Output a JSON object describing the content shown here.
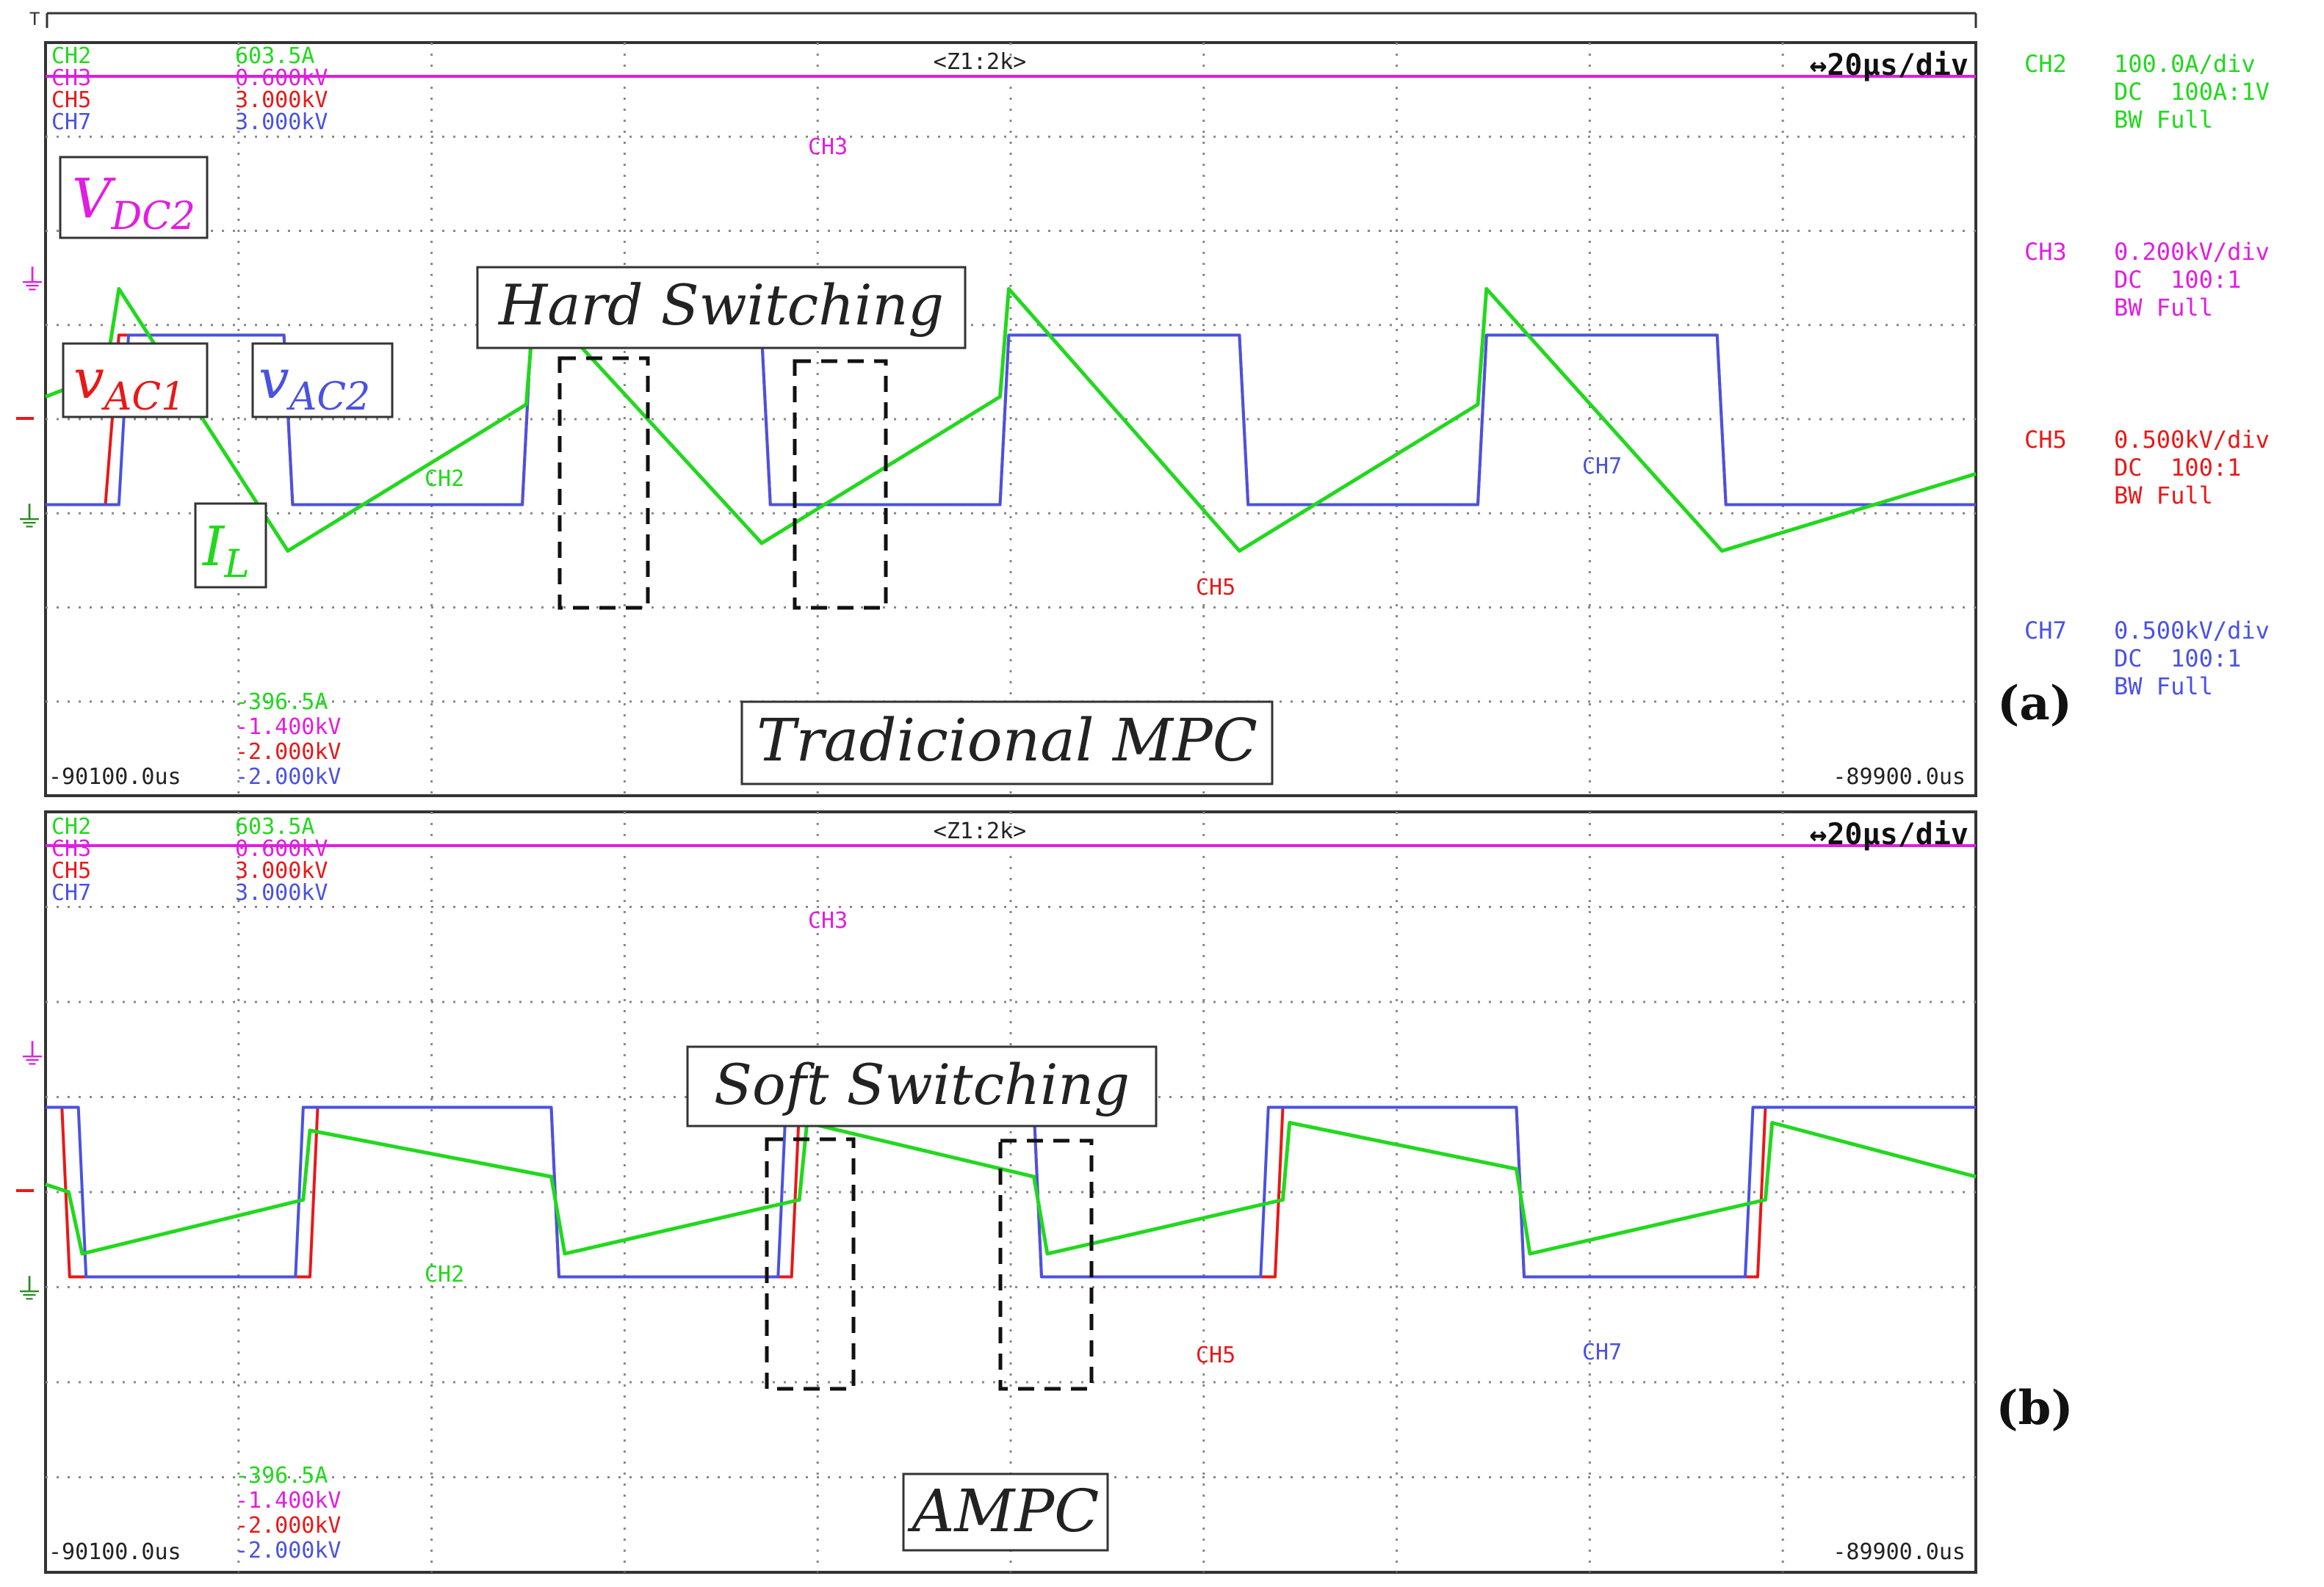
{
  "colors": {
    "ch2": "#22d81e",
    "ch3": "#e01ee0",
    "ch5": "#e81818",
    "ch7": "#4a52e0",
    "grid": "#888888",
    "frame": "#333333"
  },
  "header": {
    "zoom": "<Z1:2k>",
    "timebase": "↔20μs/div"
  },
  "channel_readouts": {
    "top": [
      {
        "ch": "CH2",
        "val": "603.5A",
        "color": "ch2"
      },
      {
        "ch": "CH3",
        "val": "0.600kV",
        "color": "ch3"
      },
      {
        "ch": "CH5",
        "val": "3.000kV",
        "color": "ch5"
      },
      {
        "ch": "CH7",
        "val": "3.000kV",
        "color": "ch7"
      }
    ],
    "bottom": [
      {
        "val": "-396.5A",
        "color": "ch2"
      },
      {
        "val": "-1.400kV",
        "color": "ch3"
      },
      {
        "val": "-2.000kV",
        "color": "ch5"
      },
      {
        "val": "-2.000kV",
        "color": "ch7"
      }
    ]
  },
  "time_left": "-90100.0us",
  "time_right": "-89900.0us",
  "right_panel": [
    {
      "ch": "CH2",
      "scale": "100.0A/div",
      "coupling": "DC  100A:1V",
      "bw": "BW Full",
      "color": "ch2"
    },
    {
      "ch": "CH3",
      "scale": "0.200kV/div",
      "coupling": "DC  100:1",
      "bw": "BW Full",
      "color": "ch3"
    },
    {
      "ch": "CH5",
      "scale": "0.500kV/div",
      "coupling": "DC  100:1",
      "bw": "BW Full",
      "color": "ch5"
    },
    {
      "ch": "CH7",
      "scale": "0.500kV/div",
      "coupling": "DC  100:1",
      "bw": "BW Full",
      "color": "ch7"
    }
  ],
  "panel_a": {
    "letter": "(a)",
    "method_label": "Tradicional MPC",
    "switching_label": "Hard Switching",
    "trace_labels": {
      "ch3": "CH3",
      "ch2": "CH2",
      "ch5": "CH5",
      "ch7": "CH7"
    },
    "signal_labels": {
      "vdc2": {
        "main": "V",
        "sub": "DC2"
      },
      "vac1": {
        "main": "v",
        "sub": "AC1"
      },
      "vac2": {
        "main": "v",
        "sub": "AC2"
      },
      "il": {
        "main": "I",
        "sub": "L"
      }
    }
  },
  "panel_b": {
    "letter": "(b)",
    "method_label": "AMPC",
    "switching_label": "Soft Switching",
    "trace_labels": {
      "ch3": "CH3",
      "ch2": "CH2",
      "ch5": "CH5",
      "ch7": "CH7"
    }
  },
  "chart_data": [
    {
      "type": "line",
      "panel": "a",
      "x_unit": "us",
      "xlim": [
        -90100.0,
        -89900.0
      ],
      "x_per_div": 20,
      "series": [
        {
          "name": "CH3",
          "x": [
            -90100,
            -89900
          ],
          "y": [
            0.6,
            0.6
          ]
        },
        {
          "name": "CH5",
          "x": [
            -90100,
            -90093.8,
            -90092.4,
            -90075.3,
            -90074.4,
            -90050.6,
            -90049.7,
            -90025.8,
            -90024.9,
            -90001.1,
            -90000.2,
            -89976.3,
            -89975.4,
            -89951.6,
            -89950.7,
            -89926.8,
            -89925.9,
            -89900
          ],
          "y": [
            -0.55,
            -0.55,
            0.55,
            0.55,
            -0.55,
            -0.55,
            0.55,
            0.55,
            -0.55,
            -0.55,
            0.55,
            0.55,
            -0.55,
            -0.55,
            0.55,
            0.55,
            -0.55,
            -0.55
          ]
        },
        {
          "name": "CH7",
          "x": [
            -90100,
            -90092.4,
            -90091.4,
            -90075.3,
            -90074.4,
            -90050.6,
            -90049.7,
            -90025.8,
            -90024.9,
            -90001.1,
            -90000.2,
            -89976.3,
            -89975.4,
            -89951.6,
            -89950.7,
            -89926.8,
            -89925.9,
            -89900
          ],
          "y": [
            -0.55,
            -0.55,
            0.55,
            0.55,
            -0.55,
            -0.55,
            0.55,
            0.55,
            -0.55,
            -0.55,
            0.55,
            0.55,
            -0.55,
            -0.55,
            0.55,
            0.55,
            -0.55,
            -0.55
          ]
        },
        {
          "name": "CH2",
          "x": [
            -90100,
            -90093.8,
            -90092.4,
            -90074.9,
            -90050.2,
            -90049.3,
            -90025.8,
            -90001.1,
            -90000.2,
            -89976.3,
            -89951.6,
            -89950.7,
            -89926.3,
            -89900
          ],
          "y": [
            30,
            60,
            170,
            -170,
            20,
            160,
            -160,
            30,
            170,
            -170,
            20,
            170,
            -170,
            -70
          ]
        }
      ]
    },
    {
      "type": "line",
      "panel": "b",
      "x_unit": "us",
      "xlim": [
        -90100.0,
        -89900.0
      ],
      "x_per_div": 20,
      "series": [
        {
          "name": "CH3",
          "x": [
            -90100,
            -89900
          ],
          "y": [
            0.6,
            0.6
          ]
        },
        {
          "name": "CH5",
          "x": [
            -90100,
            -90098.3,
            -90097.5,
            -90072.6,
            -90071.8,
            -90047.6,
            -90046.8,
            -90022.7,
            -90021.9,
            -89997.6,
            -89996.8,
            -89972.6,
            -89971.8,
            -89947.6,
            -89946.8,
            -89922.6,
            -89921.8,
            -89900
          ],
          "y": [
            0.55,
            0.55,
            -0.55,
            -0.55,
            0.55,
            0.55,
            -0.55,
            -0.55,
            0.55,
            0.55,
            -0.55,
            -0.55,
            0.55,
            0.55,
            -0.55,
            -0.55,
            0.55,
            0.55
          ]
        },
        {
          "name": "CH7",
          "x": [
            -90100,
            -90096.6,
            -90095.8,
            -90074.1,
            -90073.3,
            -90047.6,
            -90046.8,
            -90024.1,
            -90023.3,
            -89997.6,
            -89996.8,
            -89974.1,
            -89973.3,
            -89947.6,
            -89946.8,
            -89923.9,
            -89923.1,
            -89900
          ],
          "y": [
            0.55,
            0.55,
            -0.55,
            -0.55,
            0.55,
            0.55,
            -0.55,
            -0.55,
            0.55,
            0.55,
            -0.55,
            -0.55,
            0.55,
            0.55,
            -0.55,
            -0.55,
            0.55,
            0.55
          ]
        },
        {
          "name": "CH2",
          "x": [
            -90100,
            -90097.6,
            -90096.2,
            -90073.3,
            -90072.6,
            -90047.6,
            -90046.2,
            -90021.9,
            -90021.1,
            -89997.6,
            -89996.2,
            -89971.8,
            -89971.1,
            -89947.6,
            -89946.2,
            -89921.8,
            -89921.1,
            -89900
          ],
          "y": [
            10,
            0,
            -80,
            -10,
            80,
            20,
            -80,
            -10,
            90,
            20,
            -80,
            -10,
            90,
            30,
            -80,
            -10,
            90,
            20
          ]
        }
      ]
    }
  ]
}
